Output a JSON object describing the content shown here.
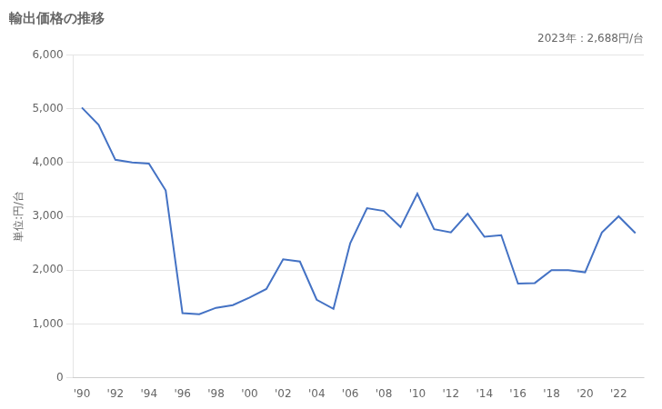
{
  "chart_data": {
    "type": "line",
    "title": "輸出価格の推移",
    "y_label": "単位:円/台",
    "annotation": "2023年：2,688円/台",
    "x": [
      1990,
      1991,
      1992,
      1993,
      1994,
      1995,
      1996,
      1997,
      1998,
      1999,
      2000,
      2001,
      2002,
      2003,
      2004,
      2005,
      2006,
      2007,
      2008,
      2009,
      2010,
      2011,
      2012,
      2013,
      2014,
      2015,
      2016,
      2017,
      2018,
      2019,
      2020,
      2021,
      2022,
      2023
    ],
    "values": [
      5020,
      4700,
      4050,
      4000,
      3980,
      3480,
      1200,
      1180,
      1300,
      1350,
      1490,
      1650,
      2200,
      2160,
      1450,
      1280,
      2500,
      3150,
      3100,
      2800,
      3420,
      2760,
      2700,
      3050,
      2620,
      2650,
      1750,
      1760,
      2000,
      2000,
      1960,
      2700,
      3000,
      2688
    ],
    "color": "#4472C4",
    "xlim": [
      1989.5,
      2023.5
    ],
    "xticks": [
      {
        "value": 1990,
        "label": "'90"
      },
      {
        "value": 1992,
        "label": "'92"
      },
      {
        "value": 1994,
        "label": "'94"
      },
      {
        "value": 1996,
        "label": "'96"
      },
      {
        "value": 1998,
        "label": "'98"
      },
      {
        "value": 2000,
        "label": "'00"
      },
      {
        "value": 2002,
        "label": "'02"
      },
      {
        "value": 2004,
        "label": "'04"
      },
      {
        "value": 2006,
        "label": "'06"
      },
      {
        "value": 2008,
        "label": "'08"
      },
      {
        "value": 2010,
        "label": "'10"
      },
      {
        "value": 2012,
        "label": "'12"
      },
      {
        "value": 2014,
        "label": "'14"
      },
      {
        "value": 2016,
        "label": "'16"
      },
      {
        "value": 2018,
        "label": "'18"
      },
      {
        "value": 2020,
        "label": "'20"
      },
      {
        "value": 2022,
        "label": "'22"
      }
    ],
    "ylim": [
      0,
      6000
    ],
    "yticks": [
      0,
      {
        "value": 1000,
        "label": "1,000"
      },
      {
        "value": 2000,
        "label": "2,000"
      },
      {
        "value": 3000,
        "label": "3,000"
      },
      {
        "value": 4000,
        "label": "4,000"
      },
      {
        "value": 5000,
        "label": "5,000"
      },
      {
        "value": 6000,
        "label": "6,000"
      }
    ],
    "grid": "y"
  }
}
